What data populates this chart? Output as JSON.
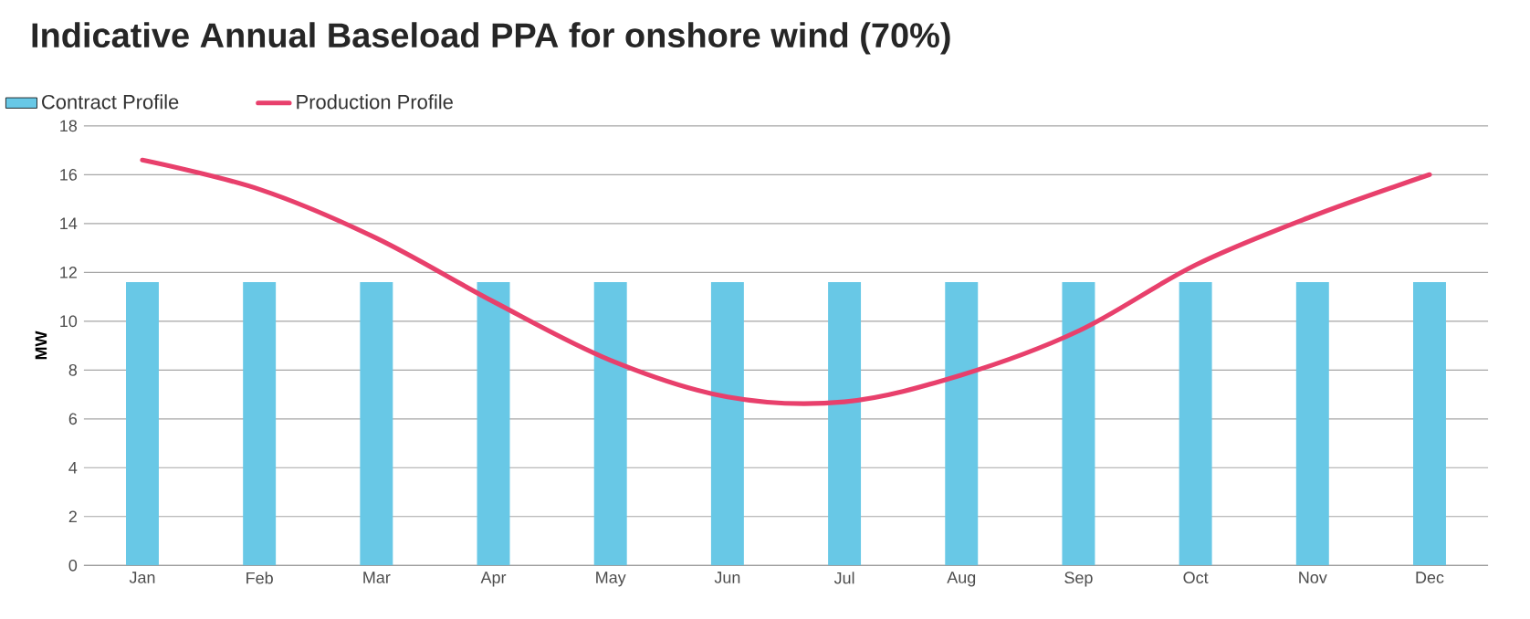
{
  "chart_data": {
    "type": "bar",
    "title": "Indicative Annual Baseload PPA for onshore wind (70%)",
    "ylabel": "MW",
    "categories": [
      "Jan",
      "Feb",
      "Mar",
      "Apr",
      "May",
      "Jun",
      "Jul",
      "Aug",
      "Sep",
      "Oct",
      "Nov",
      "Dec"
    ],
    "series": [
      {
        "name": "Contract Profile",
        "color": "#68c8e6",
        "values": [
          11.6,
          11.6,
          11.6,
          11.6,
          11.6,
          11.6,
          11.6,
          11.6,
          11.6,
          11.6,
          11.6,
          11.6
        ]
      },
      {
        "name": "Production Profile",
        "type": "line",
        "color": "#e8406c",
        "values": [
          16.6,
          15.4,
          13.4,
          10.8,
          8.4,
          6.9,
          6.7,
          7.8,
          9.6,
          12.3,
          14.3,
          16.0
        ]
      }
    ],
    "ylim": [
      0,
      18
    ],
    "yticks": [
      0,
      2,
      4,
      6,
      8,
      10,
      12,
      14,
      16,
      18
    ],
    "grid": "y",
    "legend": "top left"
  }
}
